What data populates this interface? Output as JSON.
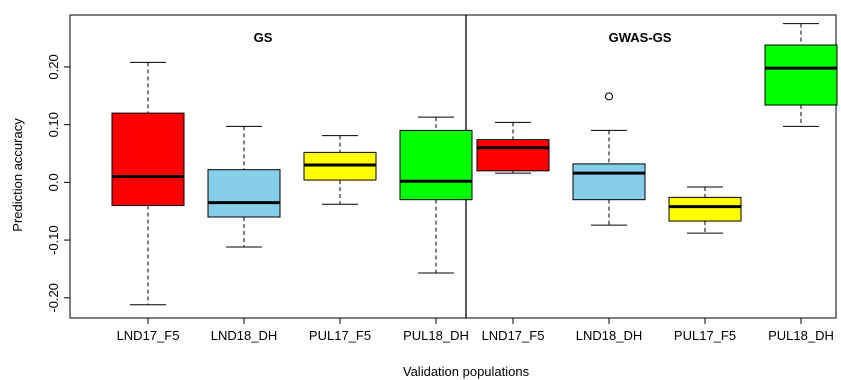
{
  "chart_data": {
    "type": "boxplot",
    "xlabel": "Validation populations",
    "ylabel": "Prediction accuracy",
    "ylim": [
      -0.235,
      0.29
    ],
    "yticks": [
      -0.2,
      -0.1,
      0.0,
      0.1,
      0.2
    ],
    "ytick_labels": [
      "-0.20",
      "-0.10",
      "0.0",
      "0.10",
      "0.20"
    ],
    "grid": false,
    "panels": [
      {
        "title": "GS",
        "groups": [
          {
            "label": "LND17_F5",
            "color": "#ff0000",
            "min": -0.212,
            "q1": -0.04,
            "median": 0.01,
            "q3": 0.12,
            "max": 0.208,
            "outliers": []
          },
          {
            "label": "LND18_DH",
            "color": "#87ceeb",
            "min": -0.112,
            "q1": -0.06,
            "median": -0.035,
            "q3": 0.022,
            "max": 0.097,
            "outliers": []
          },
          {
            "label": "PUL17_F5",
            "color": "#ffff00",
            "min": -0.038,
            "q1": 0.004,
            "median": 0.03,
            "q3": 0.052,
            "max": 0.081,
            "outliers": []
          },
          {
            "label": "PUL18_DH",
            "color": "#00ff00",
            "min": -0.157,
            "q1": -0.03,
            "median": 0.002,
            "q3": 0.09,
            "max": 0.113,
            "outliers": []
          }
        ]
      },
      {
        "title": "GWAS-GS",
        "groups": [
          {
            "label": "LND17_F5",
            "color": "#ff0000",
            "min": 0.016,
            "q1": 0.02,
            "median": 0.06,
            "q3": 0.074,
            "max": 0.104,
            "outliers": []
          },
          {
            "label": "LND18_DH",
            "color": "#87ceeb",
            "min": -0.074,
            "q1": -0.03,
            "median": 0.016,
            "q3": 0.032,
            "max": 0.09,
            "outliers": [
              0.149
            ]
          },
          {
            "label": "PUL17_F5",
            "color": "#ffff00",
            "min": -0.088,
            "q1": -0.067,
            "median": -0.042,
            "q3": -0.026,
            "max": -0.008,
            "outliers": []
          },
          {
            "label": "PUL18_DH",
            "color": "#00ff00",
            "min": 0.097,
            "q1": 0.134,
            "median": 0.198,
            "q3": 0.238,
            "max": 0.275,
            "outliers": []
          }
        ]
      }
    ]
  }
}
